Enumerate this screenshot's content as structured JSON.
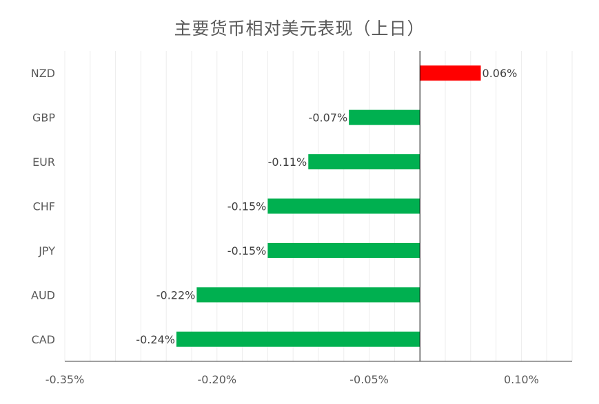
{
  "chart_data": {
    "type": "bar",
    "orientation": "horizontal",
    "title": "主要货币相对美元表现（上日）",
    "categories": [
      "NZD",
      "GBP",
      "EUR",
      "CHF",
      "JPY",
      "AUD",
      "CAD"
    ],
    "values": [
      0.06,
      -0.07,
      -0.11,
      -0.15,
      -0.15,
      -0.22,
      -0.24
    ],
    "value_labels": [
      "0.06%",
      "-0.07%",
      "-0.11%",
      "-0.15%",
      "-0.15%",
      "-0.22%",
      "-0.24%"
    ],
    "xlim": [
      -0.35,
      0.15
    ],
    "x_ticks": [
      -0.35,
      -0.2,
      -0.05,
      0.1
    ],
    "x_tick_labels": [
      "-0.35%",
      "-0.20%",
      "-0.05%",
      "0.10%"
    ],
    "grid": "vertical",
    "colors": {
      "positive": "#ff0000",
      "negative": "#00b050"
    }
  }
}
